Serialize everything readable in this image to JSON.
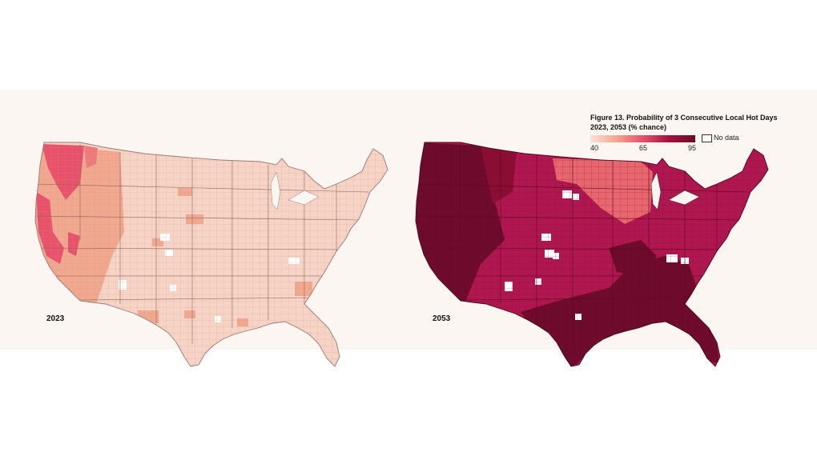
{
  "figure": {
    "title": "Figure 13. Probability of 3 Consecutive Local Hot Days 2023, 2053 (% chance)"
  },
  "legend": {
    "ticks": [
      "40",
      "65",
      "95"
    ],
    "colors": [
      "#fbe3da",
      "#f4a58e",
      "#e8506c",
      "#a3123f",
      "#6d0a28"
    ],
    "no_data_label": "No data"
  },
  "maps": [
    {
      "year": "2023",
      "base_fill": "#f7d3c6",
      "mid_fill": "#f2a78f",
      "high_fill": "#e9526a",
      "border": "#b58c80"
    },
    {
      "year": "2053",
      "base_fill": "#b01650",
      "mid_fill": "#e8666e",
      "high_fill": "#6e0a2b",
      "border": "#4a0a1c"
    }
  ]
}
